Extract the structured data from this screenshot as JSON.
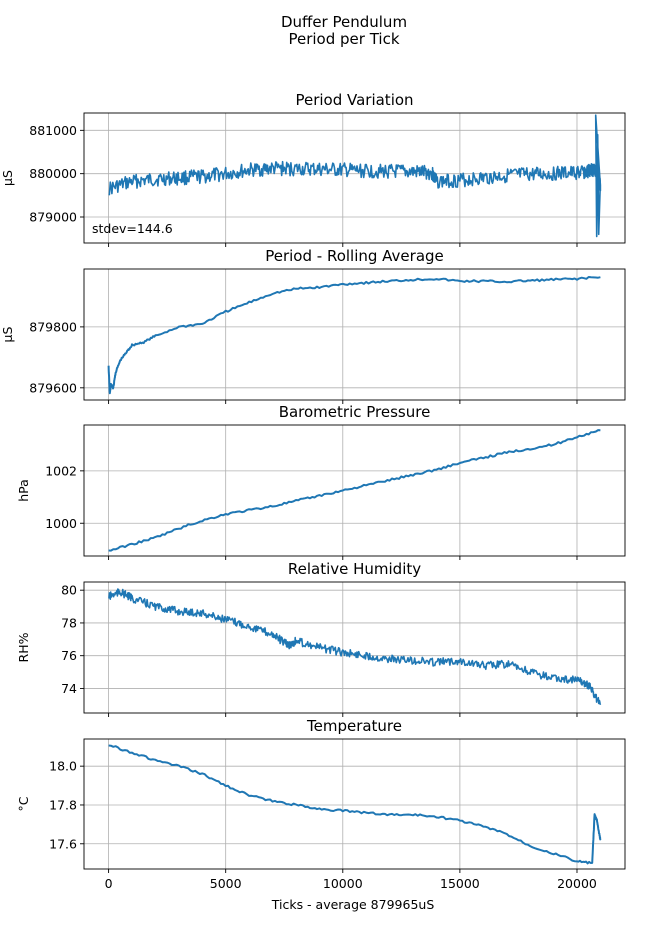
{
  "figure": {
    "suptitle_line1": "Duffer Pendulum",
    "suptitle_line2": "Period per Tick",
    "xlabel": "Ticks - average 879965uS",
    "line_color": "#1f77b4"
  },
  "chart_data": [
    {
      "type": "line",
      "title": "Period Variation",
      "ylabel": "µS",
      "annotation": "stdev=144.6",
      "xlim": [
        -1050,
        22050
      ],
      "ylim": [
        878400,
        881400
      ],
      "yticks": [
        879000,
        880000,
        881000
      ],
      "ytick_labels": [
        "879000",
        "880000",
        "881000"
      ],
      "xticks": [
        0,
        5000,
        10000,
        15000,
        20000
      ],
      "grid": true,
      "series": [
        {
          "x": [
            0,
            1000,
            2000,
            3000,
            4000,
            5000,
            6000,
            7000,
            8000,
            9000,
            10000,
            11000,
            12000,
            13000,
            13800,
            14000,
            15000,
            16000,
            17000,
            18000,
            19000,
            20000,
            20500,
            20700,
            20850,
            20950,
            21000
          ],
          "y": [
            879650,
            879820,
            879870,
            879900,
            879930,
            880000,
            880080,
            880120,
            880110,
            880100,
            880080,
            880060,
            880050,
            880040,
            880020,
            879820,
            879850,
            879900,
            879960,
            879980,
            880000,
            880020,
            880050,
            880100,
            880000,
            879800,
            879750
          ]
        }
      ]
    },
    {
      "type": "line",
      "title": "Period - Rolling Average",
      "ylabel": "µS",
      "xlim": [
        -1050,
        22050
      ],
      "ylim": [
        879560,
        879990
      ],
      "yticks": [
        879600,
        879800
      ],
      "ytick_labels": [
        "879600",
        "879800"
      ],
      "xticks": [
        0,
        5000,
        10000,
        15000,
        20000
      ],
      "grid": true,
      "series": [
        {
          "x": [
            0,
            50,
            100,
            200,
            300,
            500,
            800,
            1000,
            1500,
            2000,
            3000,
            4000,
            5000,
            6000,
            7000,
            8000,
            9000,
            10000,
            11000,
            12000,
            13000,
            14000,
            15000,
            16000,
            17000,
            18000,
            19000,
            20000,
            21000
          ],
          "y": [
            879670,
            879580,
            879610,
            879600,
            879650,
            879690,
            879720,
            879740,
            879750,
            879770,
            879800,
            879810,
            879850,
            879880,
            879910,
            879925,
            879930,
            879940,
            879945,
            879950,
            879955,
            879958,
            879950,
            879950,
            879948,
            879952,
            879955,
            879958,
            879963
          ]
        }
      ]
    },
    {
      "type": "line",
      "title": "Barometric Pressure",
      "ylabel": "hPa",
      "xlim": [
        -1050,
        22050
      ],
      "ylim": [
        998.75,
        1003.75
      ],
      "yticks": [
        1000,
        1002
      ],
      "ytick_labels": [
        "1000",
        "1002"
      ],
      "xticks": [
        0,
        5000,
        10000,
        15000,
        20000
      ],
      "grid": true,
      "series": [
        {
          "x": [
            0,
            1000,
            2000,
            3000,
            4000,
            5000,
            6000,
            7000,
            8000,
            9000,
            10000,
            11000,
            12000,
            13000,
            14000,
            15000,
            16000,
            17000,
            18000,
            19000,
            20000,
            21000
          ],
          "y": [
            998.95,
            999.2,
            999.45,
            999.8,
            1000.1,
            1000.35,
            1000.5,
            1000.65,
            1000.85,
            1001.05,
            1001.25,
            1001.45,
            1001.65,
            1001.85,
            1002.05,
            1002.3,
            1002.5,
            1002.7,
            1002.85,
            1003.0,
            1003.3,
            1003.55
          ]
        }
      ]
    },
    {
      "type": "line",
      "title": "Relative Humidity",
      "ylabel": "RH%",
      "xlim": [
        -1050,
        22050
      ],
      "ylim": [
        72.5,
        80.5
      ],
      "yticks": [
        74,
        76,
        78,
        80
      ],
      "ytick_labels": [
        "74",
        "76",
        "78",
        "80"
      ],
      "xticks": [
        0,
        5000,
        10000,
        15000,
        20000
      ],
      "grid": true,
      "series": [
        {
          "x": [
            0,
            500,
            1000,
            2000,
            3000,
            4000,
            5000,
            6000,
            7000,
            7700,
            8000,
            9000,
            10000,
            11000,
            12000,
            13000,
            14000,
            15000,
            16000,
            17000,
            18000,
            19000,
            20000,
            20500,
            21000
          ],
          "y": [
            79.6,
            79.9,
            79.5,
            79.0,
            78.7,
            78.6,
            78.2,
            77.8,
            77.3,
            76.6,
            76.9,
            76.5,
            76.2,
            76.0,
            75.8,
            75.7,
            75.6,
            75.7,
            75.4,
            75.5,
            75.0,
            74.6,
            74.5,
            74.2,
            73.0
          ]
        }
      ]
    },
    {
      "type": "line",
      "title": "Temperature",
      "ylabel": "°C",
      "xlim": [
        -1050,
        22050
      ],
      "ylim": [
        17.47,
        18.14
      ],
      "yticks": [
        17.6,
        17.8,
        18.0
      ],
      "ytick_labels": [
        "17.6",
        "17.8",
        "18.0"
      ],
      "xticks": [
        0,
        5000,
        10000,
        15000,
        20000
      ],
      "xtick_labels": [
        "0",
        "5000",
        "10000",
        "15000",
        "20000"
      ],
      "grid": true,
      "series": [
        {
          "x": [
            0,
            1000,
            2000,
            3000,
            4000,
            5000,
            6000,
            7000,
            8000,
            9000,
            10000,
            11000,
            12000,
            13000,
            14000,
            15000,
            16000,
            17000,
            18000,
            19000,
            20000,
            20650,
            20750,
            20850,
            20950,
            21000
          ],
          "y": [
            18.11,
            18.07,
            18.03,
            18.0,
            17.96,
            17.9,
            17.85,
            17.82,
            17.8,
            17.78,
            17.77,
            17.76,
            17.75,
            17.75,
            17.74,
            17.72,
            17.69,
            17.65,
            17.59,
            17.55,
            17.51,
            17.5,
            17.75,
            17.72,
            17.65,
            17.62
          ]
        }
      ]
    }
  ]
}
